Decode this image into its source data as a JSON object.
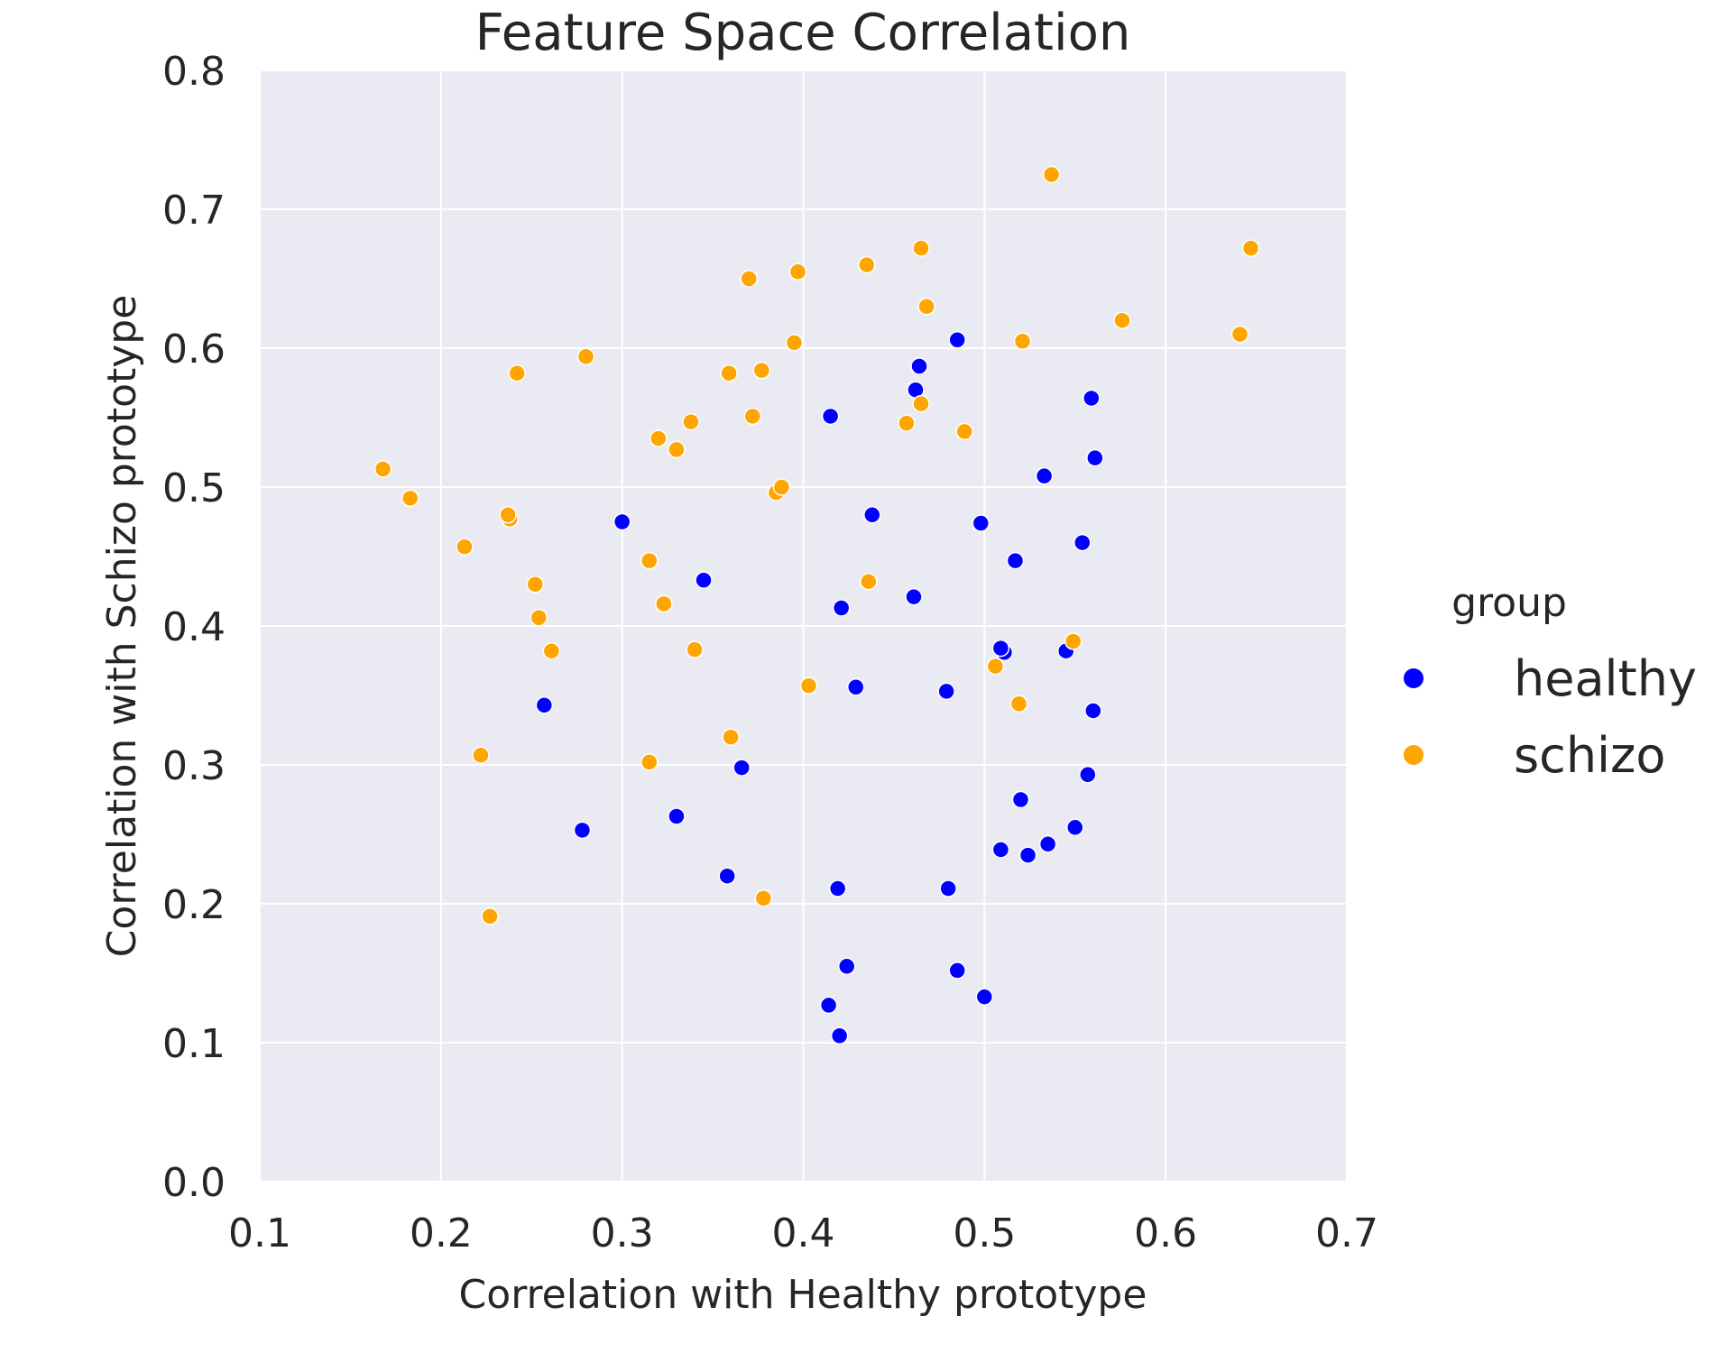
{
  "chart_data": {
    "type": "scatter",
    "title": "Feature Space Correlation",
    "xlabel": "Correlation with Healthy prototype",
    "ylabel": "Correlation with Schizo prototype",
    "xlim": [
      0.1,
      0.7
    ],
    "ylim": [
      0.0,
      0.8
    ],
    "xticks": [
      "0.1",
      "0.2",
      "0.3",
      "0.4",
      "0.5",
      "0.6",
      "0.7"
    ],
    "yticks": [
      "0.0",
      "0.1",
      "0.2",
      "0.3",
      "0.4",
      "0.5",
      "0.6",
      "0.7",
      "0.8"
    ],
    "grid": true,
    "legend": {
      "title": "group",
      "placement": "right"
    },
    "series": [
      {
        "name": "healthy",
        "color": "#0000ff",
        "points": [
          [
            0.3,
            0.475
          ],
          [
            0.345,
            0.433
          ],
          [
            0.257,
            0.343
          ],
          [
            0.366,
            0.298
          ],
          [
            0.278,
            0.253
          ],
          [
            0.33,
            0.263
          ],
          [
            0.358,
            0.22
          ],
          [
            0.415,
            0.551
          ],
          [
            0.438,
            0.48
          ],
          [
            0.421,
            0.413
          ],
          [
            0.429,
            0.356
          ],
          [
            0.419,
            0.211
          ],
          [
            0.424,
            0.155
          ],
          [
            0.414,
            0.127
          ],
          [
            0.42,
            0.105
          ],
          [
            0.461,
            0.421
          ],
          [
            0.462,
            0.57
          ],
          [
            0.464,
            0.587
          ],
          [
            0.485,
            0.606
          ],
          [
            0.479,
            0.353
          ],
          [
            0.48,
            0.211
          ],
          [
            0.485,
            0.152
          ],
          [
            0.5,
            0.133
          ],
          [
            0.498,
            0.474
          ],
          [
            0.517,
            0.447
          ],
          [
            0.511,
            0.381
          ],
          [
            0.509,
            0.384
          ],
          [
            0.52,
            0.275
          ],
          [
            0.509,
            0.239
          ],
          [
            0.524,
            0.235
          ],
          [
            0.533,
            0.508
          ],
          [
            0.535,
            0.243
          ],
          [
            0.545,
            0.382
          ],
          [
            0.55,
            0.255
          ],
          [
            0.554,
            0.46
          ],
          [
            0.559,
            0.564
          ],
          [
            0.561,
            0.521
          ],
          [
            0.56,
            0.339
          ],
          [
            0.557,
            0.293
          ]
        ]
      },
      {
        "name": "schizo",
        "color": "#ffa500",
        "points": [
          [
            0.168,
            0.513
          ],
          [
            0.183,
            0.492
          ],
          [
            0.213,
            0.457
          ],
          [
            0.222,
            0.307
          ],
          [
            0.227,
            0.191
          ],
          [
            0.238,
            0.477
          ],
          [
            0.237,
            0.48
          ],
          [
            0.242,
            0.582
          ],
          [
            0.252,
            0.43
          ],
          [
            0.254,
            0.406
          ],
          [
            0.261,
            0.382
          ],
          [
            0.28,
            0.594
          ],
          [
            0.315,
            0.447
          ],
          [
            0.315,
            0.302
          ],
          [
            0.32,
            0.535
          ],
          [
            0.323,
            0.416
          ],
          [
            0.33,
            0.527
          ],
          [
            0.338,
            0.547
          ],
          [
            0.34,
            0.383
          ],
          [
            0.359,
            0.582
          ],
          [
            0.36,
            0.32
          ],
          [
            0.37,
            0.65
          ],
          [
            0.372,
            0.551
          ],
          [
            0.377,
            0.584
          ],
          [
            0.378,
            0.204
          ],
          [
            0.385,
            0.496
          ],
          [
            0.388,
            0.5
          ],
          [
            0.395,
            0.604
          ],
          [
            0.397,
            0.655
          ],
          [
            0.403,
            0.357
          ],
          [
            0.435,
            0.66
          ],
          [
            0.436,
            0.432
          ],
          [
            0.457,
            0.546
          ],
          [
            0.465,
            0.56
          ],
          [
            0.465,
            0.672
          ],
          [
            0.468,
            0.63
          ],
          [
            0.489,
            0.54
          ],
          [
            0.506,
            0.371
          ],
          [
            0.519,
            0.344
          ],
          [
            0.521,
            0.605
          ],
          [
            0.537,
            0.725
          ],
          [
            0.549,
            0.389
          ],
          [
            0.576,
            0.62
          ],
          [
            0.641,
            0.61
          ],
          [
            0.647,
            0.672
          ]
        ]
      }
    ]
  }
}
